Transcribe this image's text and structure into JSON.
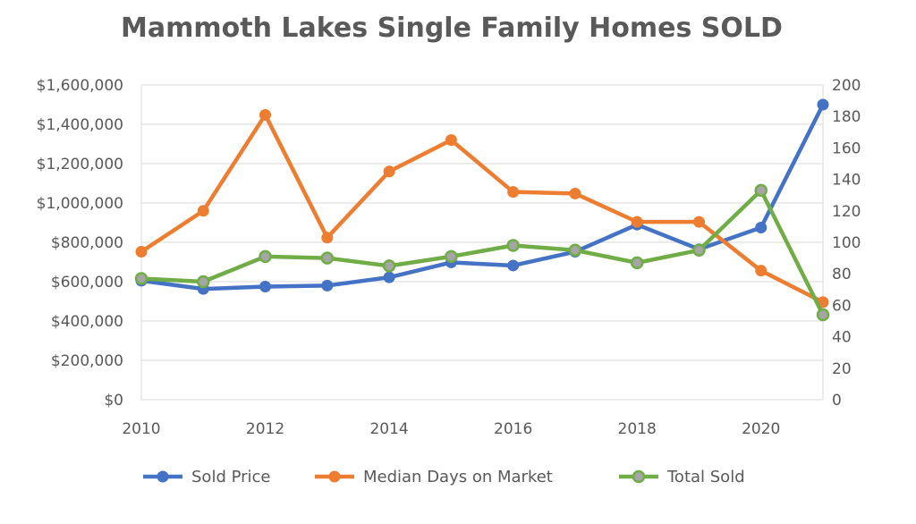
{
  "chart_data": {
    "type": "line",
    "title": "Mammoth Lakes Single Family Homes SOLD",
    "x": [
      2010,
      2011,
      2012,
      2013,
      2014,
      2015,
      2016,
      2017,
      2018,
      2019,
      2020,
      2021
    ],
    "x_tick_labels": [
      "2010",
      "2012",
      "2014",
      "2016",
      "2018",
      "2020"
    ],
    "xlim": [
      2010,
      2021
    ],
    "ylim_left": [
      0,
      1600000
    ],
    "ylim_right": [
      0,
      200
    ],
    "y_left_tick_labels": [
      "$0",
      "$200,000",
      "$400,000",
      "$600,000",
      "$800,000",
      "$1,000,000",
      "$1,200,000",
      "$1,400,000",
      "$1,600,000"
    ],
    "y_right_tick_labels": [
      "0",
      "20",
      "40",
      "60",
      "80",
      "100",
      "120",
      "140",
      "160",
      "180",
      "200"
    ],
    "grid": true,
    "legend_position": "bottom",
    "series": [
      {
        "name": "Sold Price",
        "axis": "left",
        "color": "#4472C4",
        "values": [
          605000,
          563000,
          575000,
          580000,
          622000,
          698000,
          682000,
          752000,
          890000,
          765000,
          875000,
          1500000
        ]
      },
      {
        "name": "Median Days on Market",
        "axis": "right",
        "color": "#ED7D31",
        "values": [
          94,
          120,
          181,
          103,
          145,
          165,
          132,
          131,
          113,
          113,
          82,
          62
        ]
      },
      {
        "name": "Total Sold",
        "axis": "right",
        "color": "#70AD47",
        "values": [
          77,
          75,
          91,
          90,
          85,
          91,
          98,
          95,
          87,
          95,
          133,
          54
        ]
      }
    ]
  }
}
